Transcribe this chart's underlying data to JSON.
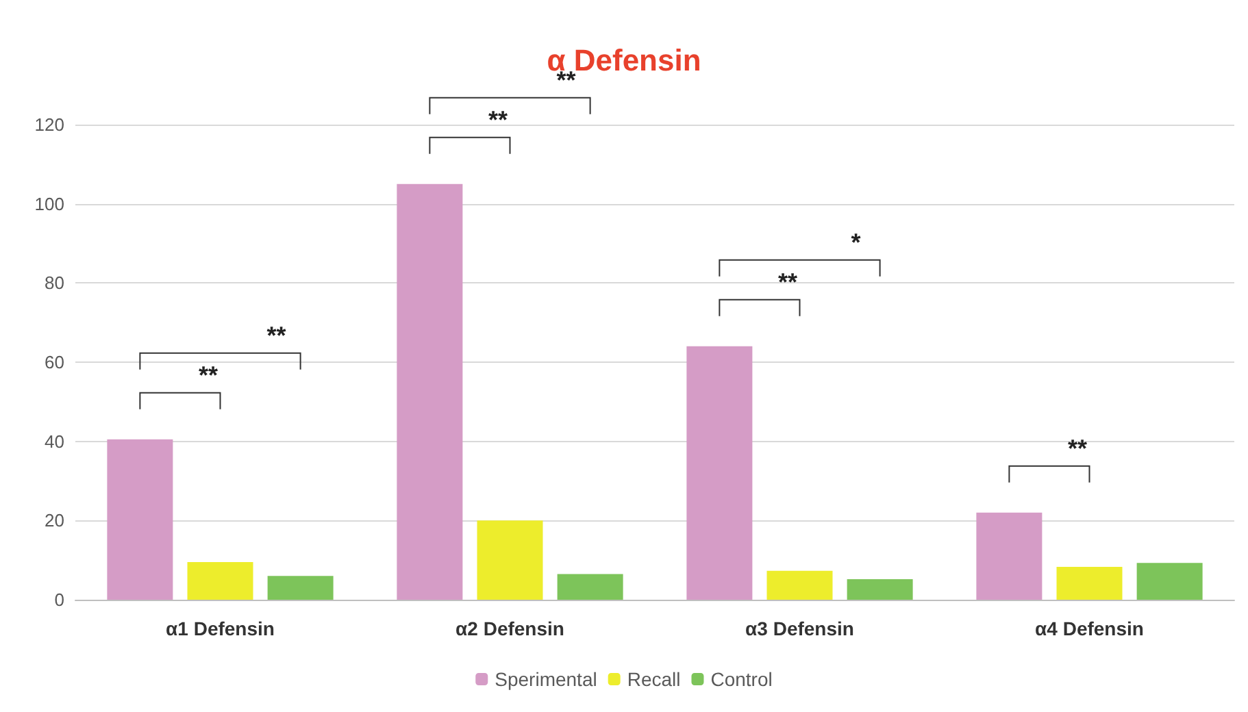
{
  "chart_data": {
    "type": "bar",
    "title": "α Defensin",
    "categories": [
      "α1 Defensin",
      "α2 Defensin",
      "α3 Defensin",
      "α4 Defensin"
    ],
    "series": [
      {
        "name": "Sperimental",
        "color": "#d59cc6",
        "values": [
          40.5,
          105,
          64,
          22
        ]
      },
      {
        "name": "Recall",
        "color": "#eded2c",
        "values": [
          9.5,
          20,
          7.3,
          8.3
        ]
      },
      {
        "name": "Control",
        "color": "#7dc45a",
        "values": [
          6,
          6.5,
          5.2,
          9.3
        ]
      }
    ],
    "ylim": [
      0,
      120
    ],
    "yticks": [
      0,
      20,
      40,
      60,
      80,
      100,
      120
    ],
    "grid": "y",
    "legend": "bottom",
    "annotations": [
      "**",
      "**",
      "**",
      "**",
      "**",
      "*",
      "**"
    ]
  }
}
